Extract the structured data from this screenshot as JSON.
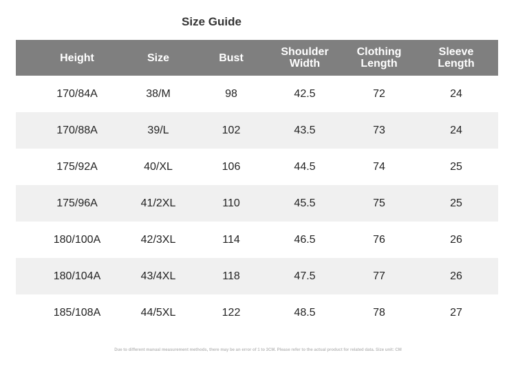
{
  "title": "Size Guide",
  "table": {
    "header": [
      "Height",
      "Size",
      "Bust",
      "Shoulder Width",
      "Clothing Length",
      "Sleeve Length"
    ],
    "rows": [
      [
        "170/84A",
        "38/M",
        "98",
        "42.5",
        "72",
        "24"
      ],
      [
        "170/88A",
        "39/L",
        "102",
        "43.5",
        "73",
        "24"
      ],
      [
        "175/92A",
        "40/XL",
        "106",
        "44.5",
        "74",
        "25"
      ],
      [
        "175/96A",
        "41/2XL",
        "110",
        "45.5",
        "75",
        "25"
      ],
      [
        "180/100A",
        "42/3XL",
        "114",
        "46.5",
        "76",
        "26"
      ],
      [
        "180/104A",
        "43/4XL",
        "118",
        "47.5",
        "77",
        "26"
      ],
      [
        "185/108A",
        "44/5XL",
        "122",
        "48.5",
        "78",
        "27"
      ]
    ]
  },
  "note": "Due to different manual measurement methods, there may be an error of 1 to 3CM. Please refer to the actual product for related data. Size unit: CM"
}
